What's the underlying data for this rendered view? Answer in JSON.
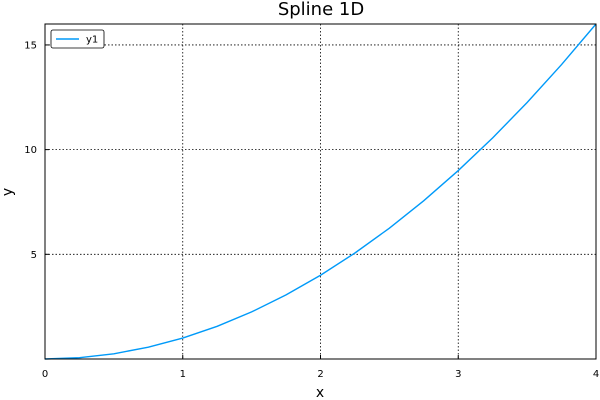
{
  "chart_data": {
    "type": "line",
    "title": "Spline 1D",
    "xlabel": "x",
    "ylabel": "y",
    "xlim": [
      0,
      4
    ],
    "ylim": [
      0,
      16
    ],
    "xticks": [
      0,
      1,
      2,
      3,
      4
    ],
    "yticks": [
      5,
      10,
      15
    ],
    "xtick_labels": [
      "0",
      "1",
      "2",
      "3",
      "4"
    ],
    "ytick_labels": [
      "5",
      "10",
      "15"
    ],
    "grid": true,
    "legend": {
      "position": "top-left",
      "entries": [
        "y1"
      ]
    },
    "series": [
      {
        "name": "y1",
        "color": "#009AF9",
        "x": [
          0,
          0.25,
          0.5,
          0.75,
          1,
          1.25,
          1.5,
          1.75,
          2,
          2.25,
          2.5,
          2.75,
          3,
          3.25,
          3.5,
          3.75,
          4
        ],
        "y": [
          0,
          0.0625,
          0.25,
          0.5625,
          1,
          1.5625,
          2.25,
          3.0625,
          4,
          5.0625,
          6.25,
          7.5625,
          9,
          10.5625,
          12.25,
          14.0625,
          16
        ]
      }
    ]
  }
}
